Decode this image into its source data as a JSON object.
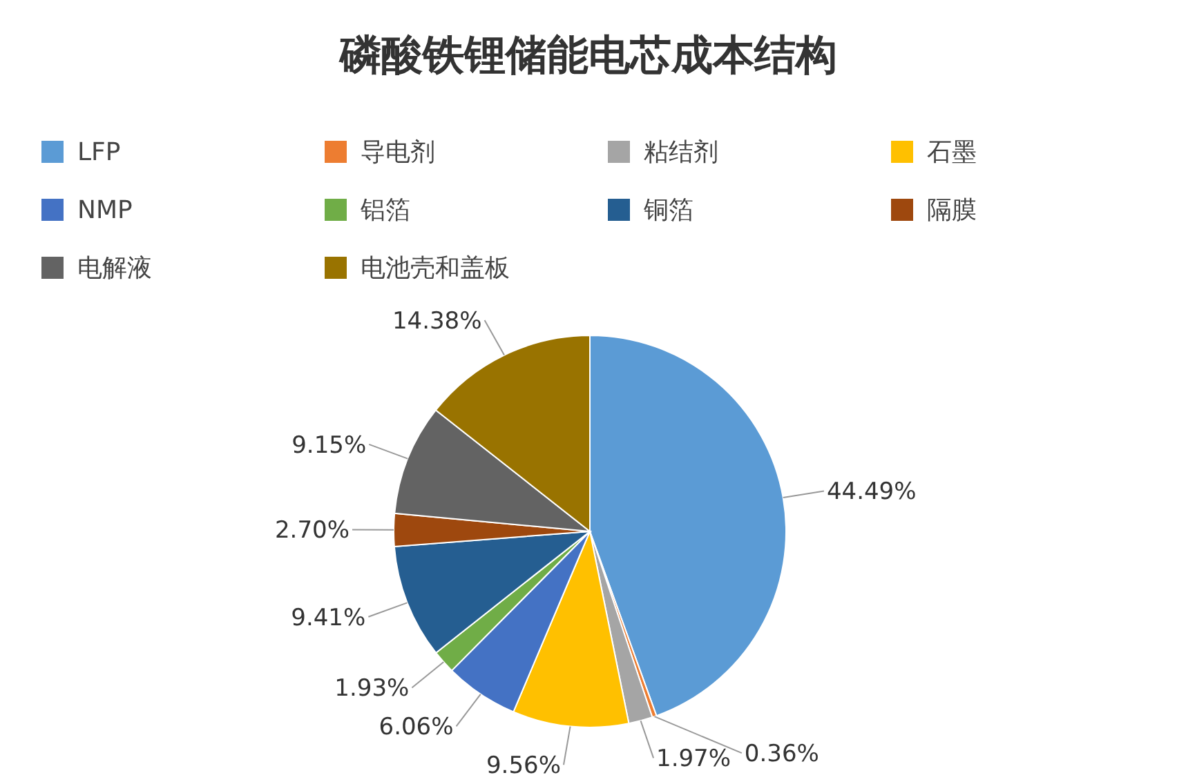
{
  "chart_data": {
    "type": "pie",
    "title": "磷酸铁锂储能电芯成本结构",
    "categories": [
      "LFP",
      "导电剂",
      "粘结剂",
      "石墨",
      "NMP",
      "铝箔",
      "铜箔",
      "隔膜",
      "电解液",
      "电池壳和盖板"
    ],
    "values": [
      44.49,
      0.36,
      1.97,
      9.56,
      6.06,
      1.93,
      9.41,
      2.7,
      9.15,
      14.38
    ],
    "colors": [
      "#5b9bd5",
      "#ed7d31",
      "#a5a5a5",
      "#ffc000",
      "#4472c4",
      "#70ad47",
      "#255e91",
      "#9e480e",
      "#636363",
      "#997300"
    ],
    "value_labels": [
      "44.49%",
      "0.36%",
      "1.97%",
      "9.56%",
      "6.06%",
      "1.93%",
      "9.41%",
      "2.70%",
      "9.15%",
      "14.38%"
    ],
    "legend": "top"
  }
}
